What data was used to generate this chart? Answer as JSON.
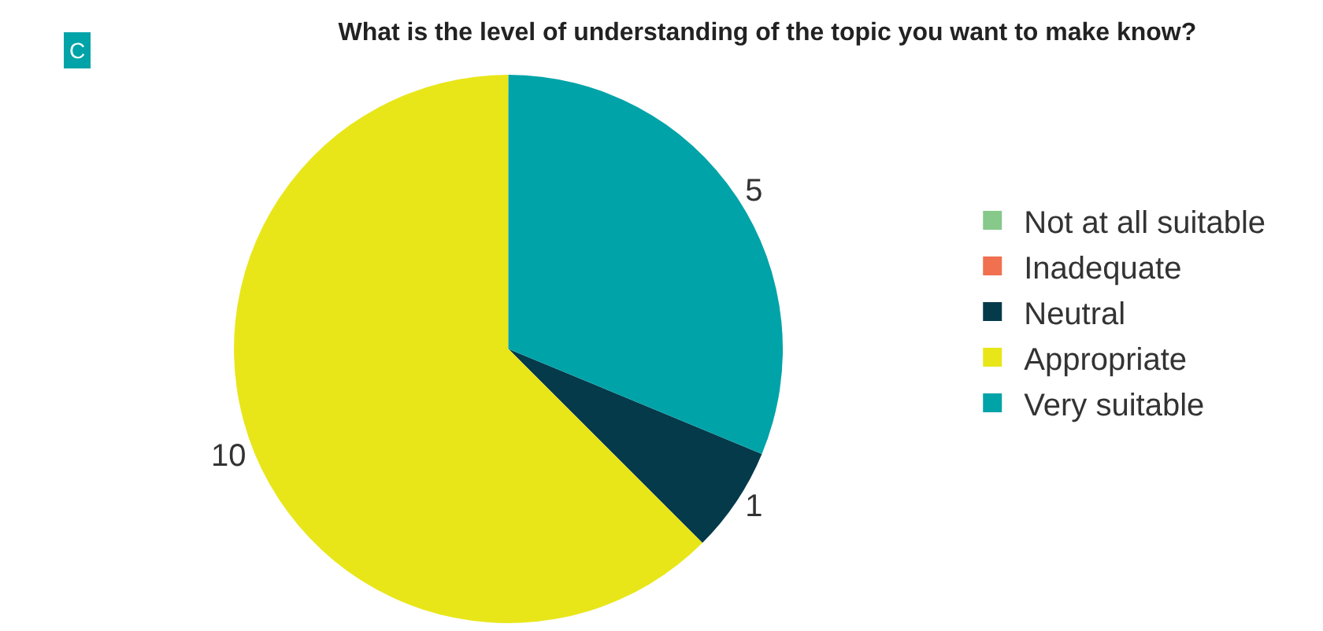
{
  "chart_data": {
    "type": "pie",
    "title": "What is the level of understanding of the topic you want to make know?",
    "annotations": [
      "C"
    ],
    "categories": [
      "Not at all suitable",
      "Inadequate",
      "Neutral",
      "Appropriate",
      "Very suitable"
    ],
    "values": [
      0,
      0,
      1,
      10,
      5
    ],
    "colors": [
      "#86c98a",
      "#f07050",
      "#053a4a",
      "#e8e619",
      "#00a3a8"
    ],
    "value_labels": [
      null,
      null,
      "1",
      "10",
      "5"
    ],
    "legend": "right"
  }
}
